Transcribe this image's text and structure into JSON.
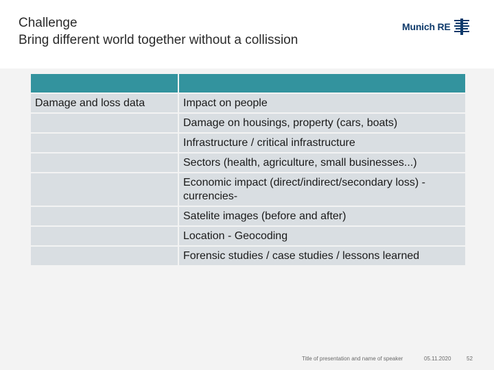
{
  "header": {
    "title_line1": "Challenge",
    "title_line2": "Bring different world together without a collission",
    "logo_text": "Munich RE"
  },
  "table": {
    "header": [
      "",
      ""
    ],
    "rows": [
      [
        "Damage and loss data",
        "Impact on people"
      ],
      [
        "",
        "Damage on housings, property (cars, boats)"
      ],
      [
        "",
        "Infrastructure / critical infrastructure"
      ],
      [
        "",
        "Sectors (health, agriculture, small businesses...)"
      ],
      [
        "",
        "Economic impact (direct/indirect/secondary loss) -currencies-"
      ],
      [
        "",
        "Satelite images (before and after)"
      ],
      [
        "",
        "Location - Geocoding"
      ],
      [
        "",
        "Forensic studies / case studies / lessons learned"
      ]
    ]
  },
  "footer": {
    "presentation": "Title of presentation and name of speaker",
    "date": "05.11.2020",
    "page": "52"
  },
  "colors": {
    "header_row": "#33939e",
    "cell": "#d9dee2",
    "logo": "#0e3a6b"
  }
}
